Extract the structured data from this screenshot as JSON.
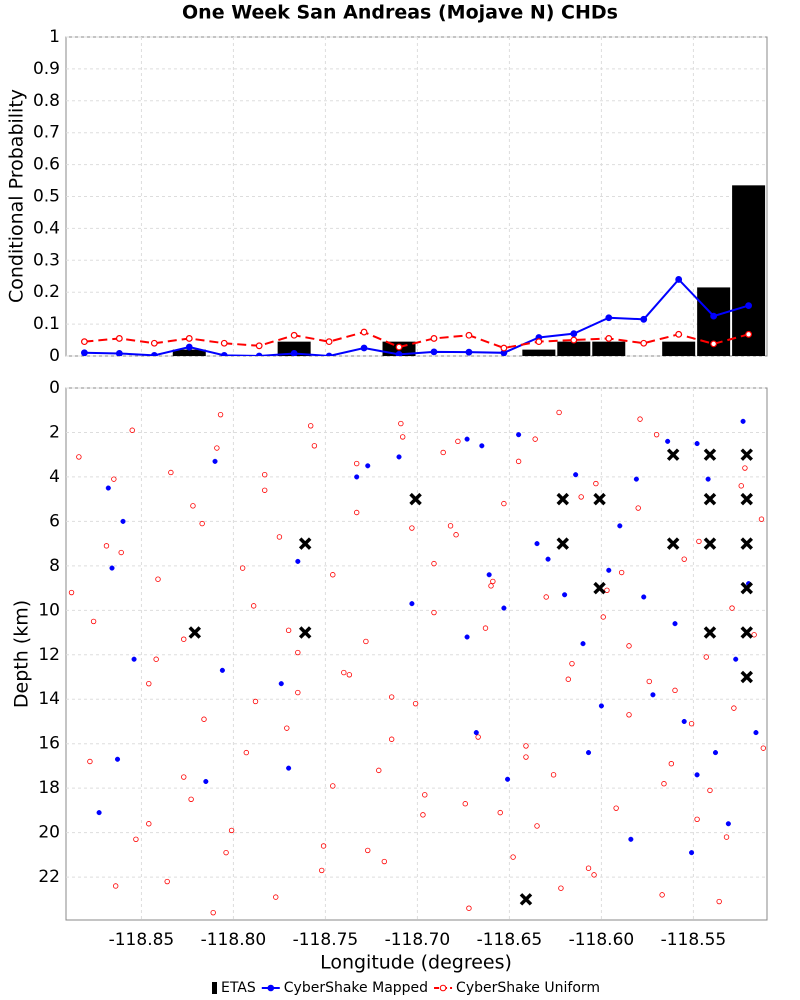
{
  "chart_data": [
    {
      "type": "combo",
      "title": "One Week San Andreas (Mojave N) CHDs",
      "ylabel": "Conditional Probability",
      "xlim": [
        -118.891,
        -118.51
      ],
      "ylim": [
        0,
        1
      ],
      "xticks": [
        -118.85,
        {
          "value": -118.8,
          "label": "-118.80"
        },
        -118.75,
        {
          "value": -118.7,
          "label": "-118.70"
        },
        -118.65,
        {
          "value": -118.6,
          "label": "-118.60"
        },
        -118.55
      ],
      "yticks": [
        0,
        0.1,
        0.2,
        0.3,
        0.4,
        0.5,
        0.6,
        0.7,
        0.8,
        0.9,
        1
      ],
      "grid": true,
      "legend": "bottom",
      "series": [
        {
          "name": "ETAS",
          "type": "bar",
          "color": "#000000",
          "x": [
            -118.824,
            -118.767,
            -118.71,
            -118.634,
            -118.615,
            -118.596,
            -118.558,
            -118.539,
            -118.52
          ],
          "values": [
            0.02,
            0.045,
            0.045,
            0.02,
            0.045,
            0.045,
            0.045,
            0.215,
            0.535
          ]
        },
        {
          "name": "CyberShake Mapped",
          "type": "line",
          "color": "#0000ff",
          "x": [
            -118.881,
            -118.862,
            -118.843,
            -118.824,
            -118.805,
            -118.786,
            -118.767,
            -118.748,
            -118.729,
            -118.71,
            -118.691,
            -118.672,
            -118.653,
            -118.634,
            -118.615,
            -118.596,
            -118.577,
            -118.558,
            -118.539,
            -118.52
          ],
          "values": [
            0.01,
            0.008,
            0.002,
            0.028,
            0.002,
            0,
            0.008,
            0,
            0.025,
            0.005,
            0.013,
            0.012,
            0.01,
            0.058,
            0.07,
            0.12,
            0.115,
            0.24,
            0.125,
            0.158
          ]
        },
        {
          "name": "CyberShake Uniform",
          "type": "line",
          "dashed": true,
          "color": "#ff0000",
          "x": [
            -118.881,
            -118.862,
            -118.843,
            -118.824,
            -118.805,
            -118.786,
            -118.767,
            -118.748,
            -118.729,
            -118.71,
            -118.691,
            -118.672,
            -118.653,
            -118.634,
            -118.615,
            -118.596,
            -118.577,
            -118.558,
            -118.539,
            -118.52
          ],
          "values": [
            0.045,
            0.055,
            0.04,
            0.055,
            0.04,
            0.032,
            0.065,
            0.045,
            0.075,
            0.028,
            0.055,
            0.065,
            0.025,
            0.045,
            0.05,
            0.055,
            0.04,
            0.068,
            0.038,
            0.068
          ]
        }
      ]
    },
    {
      "type": "scatter",
      "xlabel": "Longitude (degrees)",
      "ylabel": "Depth (km)",
      "xlim": [
        -118.891,
        -118.51
      ],
      "ylim": [
        0,
        23.93
      ],
      "y_inverted": true,
      "xticks": [
        -118.85,
        {
          "value": -118.8,
          "label": "-118.80"
        },
        -118.75,
        {
          "value": -118.7,
          "label": "-118.70"
        },
        -118.65,
        {
          "value": -118.6,
          "label": "-118.60"
        },
        -118.55
      ],
      "yticks": [
        0,
        2,
        4,
        6,
        8,
        10,
        12,
        14,
        16,
        18,
        20,
        22
      ],
      "grid": true,
      "series": [
        {
          "marker": "open-circle",
          "color": "#ff0000",
          "x": [
            -118.884,
            -118.861,
            -118.842,
            -118.823,
            -118.807,
            -118.789,
            -118.771,
            -118.752,
            -118.733,
            -118.714,
            -118.697,
            -118.678,
            -118.659,
            -118.641,
            -118.622,
            -118.603,
            -118.585,
            -118.566,
            -118.547,
            -118.528,
            -118.876,
            -118.853,
            -118.834,
            -118.816,
            -118.795,
            -118.777,
            -118.758,
            -118.74,
            -118.721,
            -118.703,
            -118.686,
            -118.667,
            -118.648,
            -118.63,
            -118.611,
            -118.592,
            -118.574,
            -118.555,
            -118.536,
            -118.517,
            -118.878,
            -118.855,
            -118.836,
            -118.817,
            -118.801,
            -118.783,
            -118.765,
            -118.746,
            -118.727,
            -118.708,
            -118.691,
            -118.672,
            -118.653,
            -118.635,
            -118.616,
            -118.597,
            -118.579,
            -118.56,
            -118.541,
            -118.522,
            -118.869,
            -118.846,
            -118.827,
            -118.809,
            -118.788,
            -118.77,
            -118.751,
            -118.733,
            -118.714,
            -118.696,
            -118.679,
            -118.66,
            -118.641,
            -118.623,
            -118.604,
            -118.585,
            -118.567,
            -118.548,
            -118.529,
            -118.513,
            -118.888,
            -118.865,
            -118.846,
            -118.827,
            -118.811,
            -118.793,
            -118.775,
            -118.756,
            -118.737,
            -118.718,
            -118.701,
            -118.682,
            -118.663,
            -118.645,
            -118.626,
            -118.607,
            -118.589,
            -118.57,
            -118.551,
            -118.532,
            -118.864,
            -118.841,
            -118.822,
            -118.804,
            -118.783,
            -118.765,
            -118.746,
            -118.728,
            -118.709,
            -118.691,
            -118.674,
            -118.655,
            -118.636,
            -118.618,
            -118.599,
            -118.58,
            -118.562,
            -118.543,
            -118.524,
            -118.512
          ],
          "values": [
            3.1,
            7.4,
            12.2,
            18.5,
            1.2,
            9.8,
            15.3,
            21.7,
            5.6,
            13.9,
            19.2,
            2.4,
            8.7,
            16.1,
            22.5,
            4.3,
            11.6,
            17.8,
            6.9,
            14.4,
            10.5,
            20.3,
            3.8,
            14.9,
            8.1,
            22.9,
            1.7,
            12.8,
            17.2,
            6.3,
            2.9,
            15.7,
            21.1,
            9.4,
            4.9,
            18.9,
            13.2,
            7.7,
            23.1,
            11.1,
            16.8,
            1.9,
            22.2,
            6.1,
            19.9,
            4.6,
            11.9,
            8.4,
            20.8,
            2.2,
            10.1,
            23.4,
            5.2,
            19.7,
            12.4,
            9.1,
            1.4,
            13.6,
            18.1,
            3.6,
            7.1,
            13.3,
            17.5,
            2.7,
            14.1,
            10.9,
            20.6,
            3.4,
            15.8,
            18.3,
            6.6,
            8.9,
            16.6,
            1.1,
            21.9,
            14.7,
            22.8,
            19.4,
            9.9,
            5.9,
            9.2,
            4.1,
            19.6,
            11.3,
            23.6,
            16.4,
            6.7,
            2.6,
            12.9,
            21.3,
            14.2,
            6.2,
            10.8,
            3.3,
            17.4,
            21.6,
            8.3,
            2.1,
            15.1,
            20.2,
            22.4,
            8.6,
            5.3,
            20.9,
            3.9,
            13.7,
            17.9,
            11.4,
            1.6,
            7.9,
            18.7,
            19.1,
            2.3,
            13.1,
            10.3,
            5.4,
            16.9,
            12.1,
            4.4,
            16.2
          ]
        },
        {
          "marker": "dot",
          "color": "#0000ff",
          "x": [
            -118.868,
            -118.86,
            -118.866,
            -118.854,
            -118.873,
            -118.863,
            -118.81,
            -118.815,
            -118.806,
            -118.765,
            -118.774,
            -118.77,
            -118.733,
            -118.727,
            -118.71,
            -118.703,
            -118.673,
            -118.665,
            -118.661,
            -118.673,
            -118.668,
            -118.653,
            -118.651,
            -118.645,
            -118.635,
            -118.629,
            -118.62,
            -118.614,
            -118.61,
            -118.607,
            -118.6,
            -118.596,
            -118.59,
            -118.581,
            -118.577,
            -118.572,
            -118.564,
            -118.56,
            -118.555,
            -118.548,
            -118.542,
            -118.538,
            -118.531,
            -118.523,
            -118.52,
            -118.516,
            -118.527,
            -118.548,
            -118.584,
            -118.551
          ],
          "values": [
            4.5,
            6,
            8.1,
            12.2,
            19.1,
            16.7,
            3.3,
            17.7,
            12.7,
            7.8,
            13.3,
            17.1,
            4,
            3.5,
            3.1,
            9.7,
            2.3,
            2.6,
            8.4,
            11.2,
            15.5,
            9.9,
            17.6,
            2.1,
            7,
            7.7,
            9.3,
            3.9,
            11.5,
            16.4,
            14.3,
            8.2,
            6.2,
            4.1,
            9.4,
            13.8,
            2.4,
            10.6,
            15,
            17.4,
            4.1,
            16.4,
            19.6,
            1.5,
            8.8,
            15.5,
            12.2,
            2.5,
            20.3,
            20.9
          ]
        },
        {
          "marker": "x",
          "color": "#000000",
          "x": [
            -118.701,
            -118.761,
            -118.821,
            -118.761,
            -118.621,
            -118.601,
            -118.621,
            -118.601,
            -118.561,
            -118.541,
            -118.521,
            -118.541,
            -118.521,
            -118.561,
            -118.541,
            -118.521,
            -118.521,
            -118.541,
            -118.521,
            -118.521,
            -118.641
          ],
          "values": [
            5,
            7,
            11,
            11,
            5,
            5,
            7,
            9,
            3,
            3,
            3,
            5,
            5,
            7,
            7,
            7,
            9,
            11,
            11,
            13,
            23
          ]
        }
      ]
    }
  ]
}
